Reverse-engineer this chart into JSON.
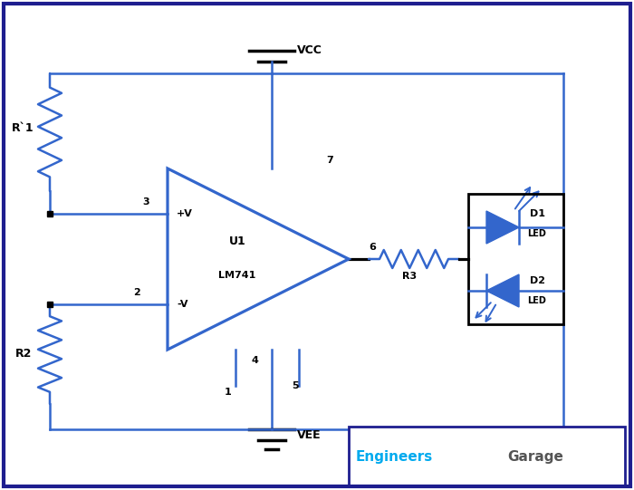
{
  "bg_color": "#ffffff",
  "border_color": "#1e1e8f",
  "cc": "#3366cc",
  "bk": "#000000",
  "eg_blue": "#00aaee",
  "eg_gray": "#555555",
  "fig_w": 7.0,
  "fig_h": 5.41,
  "dpi": 100,
  "xlim": [
    0,
    7.0
  ],
  "ylim": [
    0,
    5.41
  ]
}
